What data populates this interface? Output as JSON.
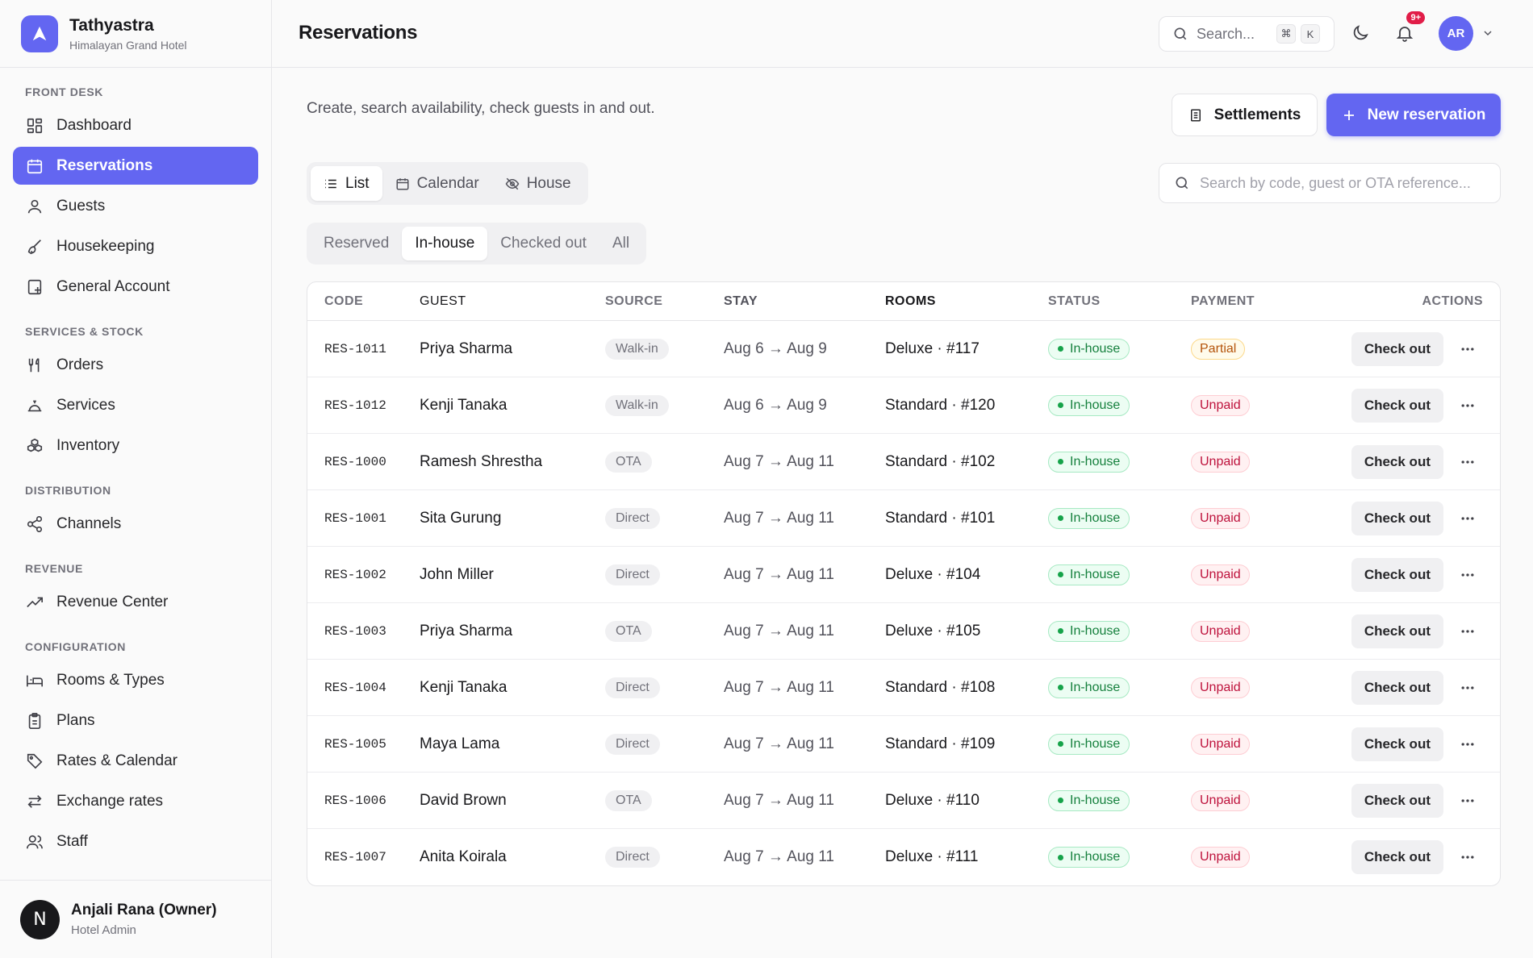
{
  "brand": {
    "name": "Tathyastra",
    "subtitle": "Himalayan Grand Hotel"
  },
  "sidebar": {
    "sections": [
      {
        "title": "FRONT DESK",
        "items": [
          {
            "label": "Dashboard",
            "icon": "grid-icon"
          },
          {
            "label": "Reservations",
            "icon": "calendar-icon",
            "active": true
          },
          {
            "label": "Guests",
            "icon": "user-icon"
          },
          {
            "label": "Housekeeping",
            "icon": "brush-icon"
          },
          {
            "label": "General Account",
            "icon": "ledger-icon"
          }
        ]
      },
      {
        "title": "SERVICES & STOCK",
        "items": [
          {
            "label": "Orders",
            "icon": "utensils-icon"
          },
          {
            "label": "Services",
            "icon": "bell-service-icon"
          },
          {
            "label": "Inventory",
            "icon": "boxes-icon"
          }
        ]
      },
      {
        "title": "DISTRIBUTION",
        "items": [
          {
            "label": "Channels",
            "icon": "share-icon"
          }
        ]
      },
      {
        "title": "REVENUE",
        "items": [
          {
            "label": "Revenue Center",
            "icon": "trending-up-icon"
          }
        ]
      },
      {
        "title": "CONFIGURATION",
        "items": [
          {
            "label": "Rooms & Types",
            "icon": "bed-icon"
          },
          {
            "label": "Plans",
            "icon": "clipboard-icon"
          },
          {
            "label": "Rates & Calendar",
            "icon": "tag-icon"
          },
          {
            "label": "Exchange rates",
            "icon": "arrows-icon"
          },
          {
            "label": "Staff",
            "icon": "users-icon"
          }
        ]
      }
    ]
  },
  "user": {
    "initial": "N",
    "name": "Anjali Rana (Owner)",
    "role": "Hotel Admin"
  },
  "topbar": {
    "title": "Reservations",
    "search_placeholder": "Search...",
    "kbd_cmd": "⌘",
    "kbd_key": "K",
    "notif_count": "9+",
    "avatar_initials": "AR"
  },
  "main": {
    "subtitle": "Create, search availability, check guests in and out.",
    "settlements_label": "Settlements",
    "new_reservation_label": "New reservation",
    "view_tabs": [
      {
        "label": "List",
        "active": true
      },
      {
        "label": "Calendar",
        "active": false
      },
      {
        "label": "House",
        "active": false
      }
    ],
    "search_placeholder": "Search by code, guest or OTA reference...",
    "filter_tabs": [
      {
        "label": "Reserved",
        "active": false
      },
      {
        "label": "In-house",
        "active": true
      },
      {
        "label": "Checked out",
        "active": false
      },
      {
        "label": "All",
        "active": false
      }
    ],
    "table": {
      "headers": [
        "CODE",
        "GUEST",
        "SOURCE",
        "STAY",
        "ROOMS",
        "STATUS",
        "PAYMENT",
        "ACTIONS"
      ],
      "action_label": "Check out",
      "rows": [
        {
          "code": "RES-1011",
          "guest": "Priya Sharma",
          "source": "Walk-in",
          "stay": "Aug 6 → Aug 9",
          "rooms": "Deluxe · #117",
          "status": "In-house",
          "payment": "Partial"
        },
        {
          "code": "RES-1012",
          "guest": "Kenji Tanaka",
          "source": "Walk-in",
          "stay": "Aug 6 → Aug 9",
          "rooms": "Standard · #120",
          "status": "In-house",
          "payment": "Unpaid"
        },
        {
          "code": "RES-1000",
          "guest": "Ramesh Shrestha",
          "source": "OTA",
          "stay": "Aug 7 → Aug 11",
          "rooms": "Standard · #102",
          "status": "In-house",
          "payment": "Unpaid"
        },
        {
          "code": "RES-1001",
          "guest": "Sita Gurung",
          "source": "Direct",
          "stay": "Aug 7 → Aug 11",
          "rooms": "Standard · #101",
          "status": "In-house",
          "payment": "Unpaid"
        },
        {
          "code": "RES-1002",
          "guest": "John Miller",
          "source": "Direct",
          "stay": "Aug 7 → Aug 11",
          "rooms": "Deluxe · #104",
          "status": "In-house",
          "payment": "Unpaid"
        },
        {
          "code": "RES-1003",
          "guest": "Priya Sharma",
          "source": "OTA",
          "stay": "Aug 7 → Aug 11",
          "rooms": "Deluxe · #105",
          "status": "In-house",
          "payment": "Unpaid"
        },
        {
          "code": "RES-1004",
          "guest": "Kenji Tanaka",
          "source": "Direct",
          "stay": "Aug 7 → Aug 11",
          "rooms": "Standard · #108",
          "status": "In-house",
          "payment": "Unpaid"
        },
        {
          "code": "RES-1005",
          "guest": "Maya Lama",
          "source": "Direct",
          "stay": "Aug 7 → Aug 11",
          "rooms": "Standard · #109",
          "status": "In-house",
          "payment": "Unpaid"
        },
        {
          "code": "RES-1006",
          "guest": "David Brown",
          "source": "OTA",
          "stay": "Aug 7 → Aug 11",
          "rooms": "Deluxe · #110",
          "status": "In-house",
          "payment": "Unpaid"
        },
        {
          "code": "RES-1007",
          "guest": "Anita Koirala",
          "source": "Direct",
          "stay": "Aug 7 → Aug 11",
          "rooms": "Deluxe · #111",
          "status": "In-house",
          "payment": "Unpaid"
        }
      ]
    }
  },
  "colors": {
    "accent": "#6366f1",
    "success": "#16a34a",
    "danger": "#be123c",
    "warning": "#b45309"
  }
}
